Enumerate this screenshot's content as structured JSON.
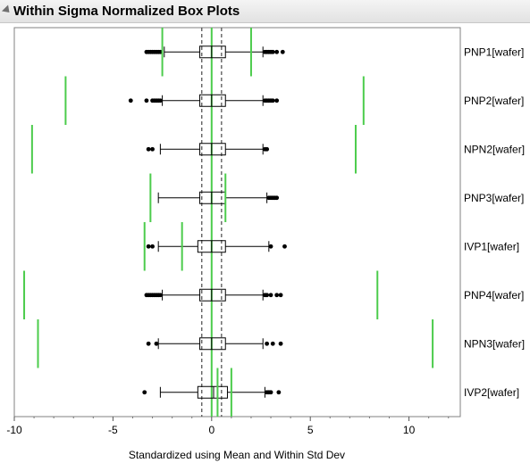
{
  "panel": {
    "title": "Within Sigma Normalized Box Plots",
    "collapse_icon": "disclosure-triangle-icon"
  },
  "chart_data": {
    "type": "boxplot",
    "orientation": "horizontal",
    "title": "Within Sigma Normalized Box Plots",
    "xlabel": "Standardized using Mean and Within Std Dev",
    "xlim": [
      -10,
      12.6
    ],
    "xticks": [
      -10,
      -5,
      0,
      5,
      10
    ],
    "reference_lines": {
      "solid": [
        0
      ],
      "dashed": [
        -0.5,
        0.5
      ]
    },
    "colors": {
      "box": "#000000",
      "limit_lines": "#4ccc4c",
      "reference": "#555555",
      "center": "#4ccc4c"
    },
    "series": [
      {
        "name": "PNP1[wafer]",
        "lower_whisker": -2.4,
        "q1": -0.6,
        "median": 0.0,
        "q3": 0.7,
        "upper_whisker": 2.6,
        "limits": [
          -2.5,
          2.0
        ],
        "limit_span": [
          0.0,
          1.0
        ],
        "outliers": [
          -3.3,
          -3.2,
          -3.1,
          -3.0,
          -2.9,
          -2.8,
          -2.7,
          -2.6,
          2.7,
          2.8,
          2.9,
          3.0,
          3.1,
          3.3,
          3.6
        ]
      },
      {
        "name": "PNP2[wafer]",
        "lower_whisker": -2.5,
        "q1": -0.6,
        "median": 0.0,
        "q3": 0.7,
        "upper_whisker": 2.6,
        "limits": [
          -7.4,
          7.7
        ],
        "limit_span": [
          0.0,
          1.0
        ],
        "outliers": [
          -4.1,
          -3.3,
          -3.0,
          -2.9,
          -2.8,
          -2.7,
          -2.6,
          2.7,
          2.8,
          2.9,
          3.0,
          3.1,
          3.3
        ]
      },
      {
        "name": "NPN2[wafer]",
        "lower_whisker": -2.6,
        "q1": -0.6,
        "median": 0.0,
        "q3": 0.7,
        "upper_whisker": 2.6,
        "limits": [
          -9.1,
          7.3
        ],
        "limit_span": [
          0.0,
          1.0
        ],
        "outliers": [
          -3.2,
          -3.0,
          2.7,
          2.8
        ]
      },
      {
        "name": "PNP3[wafer]",
        "lower_whisker": -2.7,
        "q1": -0.6,
        "median": 0.0,
        "q3": 0.7,
        "upper_whisker": 2.8,
        "limits": [
          -3.1,
          0.7
        ],
        "limit_span": [
          0.0,
          1.0
        ],
        "outliers": [
          2.9,
          3.0,
          3.1,
          3.2,
          3.3
        ]
      },
      {
        "name": "IVP1[wafer]",
        "lower_whisker": -2.7,
        "q1": -0.7,
        "median": 0.0,
        "q3": 0.7,
        "upper_whisker": 2.9,
        "limits": [
          -3.4,
          -1.5
        ],
        "limit_span": [
          0.0,
          1.0
        ],
        "outliers": [
          -3.2,
          -3.0,
          3.0,
          3.7
        ]
      },
      {
        "name": "PNP4[wafer]",
        "lower_whisker": -2.5,
        "q1": -0.6,
        "median": 0.0,
        "q3": 0.7,
        "upper_whisker": 2.6,
        "limits": [
          -9.5,
          8.4
        ],
        "limit_span": [
          0.0,
          1.0
        ],
        "outliers": [
          -3.3,
          -3.2,
          -3.1,
          -3.0,
          -2.9,
          -2.8,
          -2.7,
          -2.6,
          2.7,
          2.8,
          3.0,
          3.3,
          3.5
        ]
      },
      {
        "name": "NPN3[wafer]",
        "lower_whisker": -2.7,
        "q1": -0.6,
        "median": 0.0,
        "q3": 0.7,
        "upper_whisker": 2.6,
        "limits": [
          -8.8,
          11.2
        ],
        "limit_span": [
          0.0,
          1.0
        ],
        "outliers": [
          -3.2,
          -2.8,
          2.8,
          3.1,
          3.5
        ]
      },
      {
        "name": "IVP2[wafer]",
        "lower_whisker": -2.6,
        "q1": -0.7,
        "median": 0.1,
        "q3": 0.8,
        "upper_whisker": 2.7,
        "limits": [
          0.3,
          1.0
        ],
        "limit_span": [
          0.0,
          1.0
        ],
        "outliers": [
          -3.4,
          2.8,
          2.9,
          3.0,
          3.4
        ]
      }
    ]
  }
}
